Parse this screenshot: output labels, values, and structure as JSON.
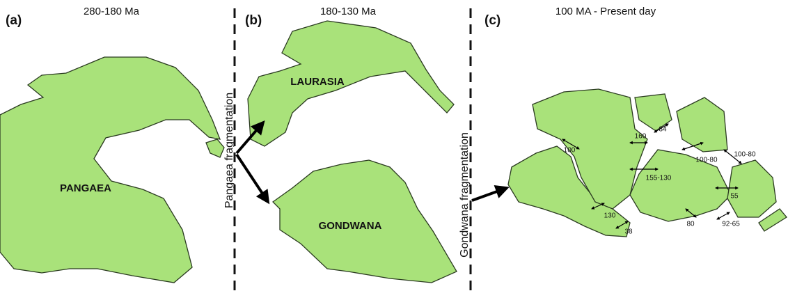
{
  "panels": [
    {
      "label": "(a)",
      "title": "280-180 Ma",
      "landmasses": [
        "PANGAEA"
      ]
    },
    {
      "label": "(b)",
      "title": "180-130 Ma",
      "landmasses": [
        "LAURASIA",
        "GONDWANA"
      ]
    },
    {
      "label": "(c)",
      "title": "100 MA - Present day",
      "rift_ages": [
        "100",
        "160",
        "84",
        "100-80",
        "100-80",
        "155-130",
        "55",
        "130",
        "38",
        "80",
        "92-65"
      ]
    }
  ],
  "transitions": [
    "Pangaea fragmentation",
    "Gondwana fragmentation"
  ]
}
